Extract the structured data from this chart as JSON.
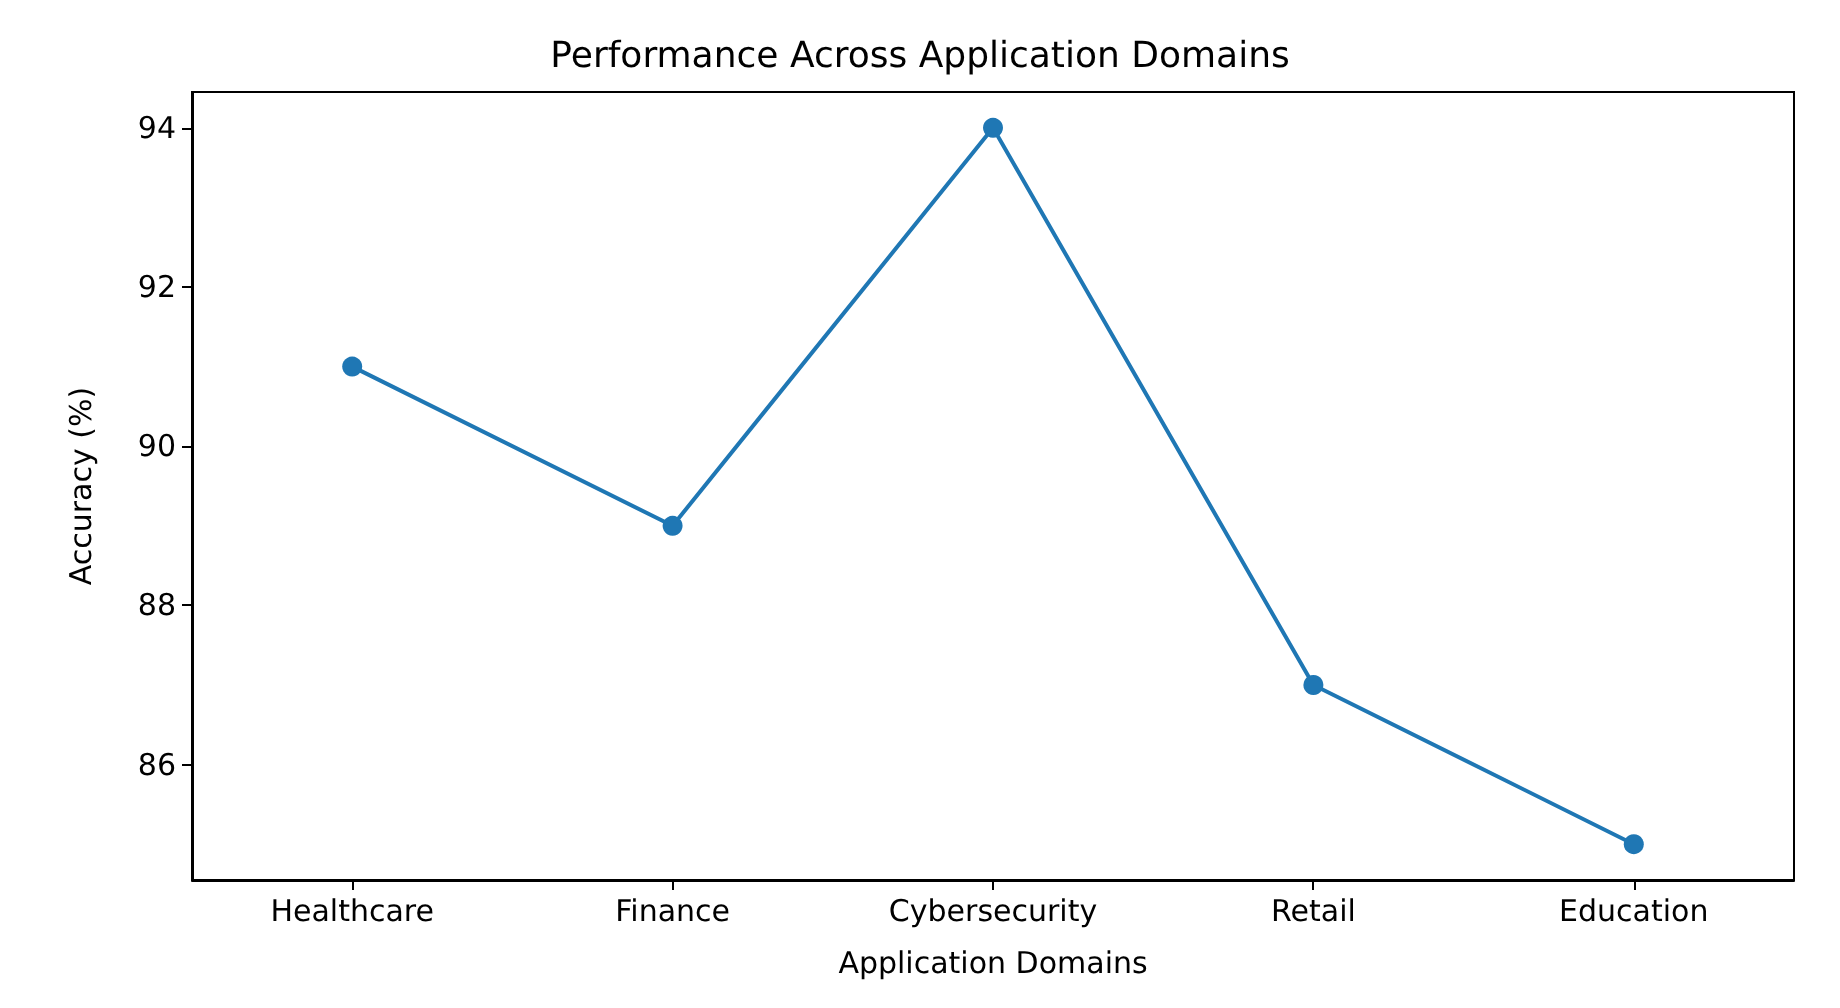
{
  "chart_data": {
    "type": "line",
    "title": "Performance Across Application Domains",
    "xlabel": "Application Domains",
    "ylabel": "Accuracy (%)",
    "categories": [
      "Healthcare",
      "Finance",
      "Cybersecurity",
      "Retail",
      "Education"
    ],
    "series": [
      {
        "color": "#1f77b4",
        "values": [
          91,
          89,
          94,
          87,
          85
        ]
      }
    ],
    "ylim": [
      84.55,
      94.45
    ],
    "yticks": [
      86,
      88,
      90,
      92,
      94
    ],
    "grid": false,
    "marker": "circle",
    "line_style": "solid"
  }
}
